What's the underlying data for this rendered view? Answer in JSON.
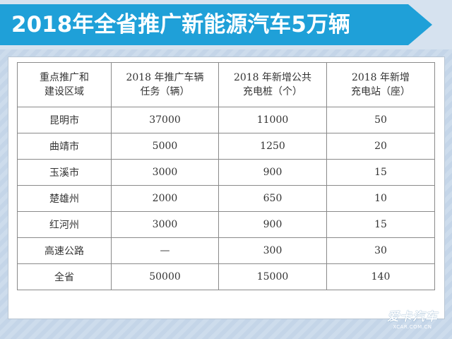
{
  "banner": {
    "title": "2018年全省推广新能源汽车5万辆"
  },
  "table": {
    "headers": [
      [
        "重点推广和",
        "建设区域"
      ],
      [
        "2018 年推广车辆",
        "任务（辆）"
      ],
      [
        "2018 年新增公共",
        "充电桩（个）"
      ],
      [
        "2018 年新增",
        "充电站（座）"
      ]
    ],
    "rows": [
      [
        "昆明市",
        "37000",
        "11000",
        "50"
      ],
      [
        "曲靖市",
        "5000",
        "1250",
        "20"
      ],
      [
        "玉溪市",
        "3000",
        "900",
        "15"
      ],
      [
        "楚雄州",
        "2000",
        "650",
        "10"
      ],
      [
        "红河州",
        "3000",
        "900",
        "15"
      ],
      [
        "高速公路",
        "—",
        "300",
        "30"
      ],
      [
        "全省",
        "50000",
        "15000",
        "140"
      ]
    ]
  },
  "logo": {
    "main": "爱卡汽车",
    "sub": "XCAR.COM.CN"
  },
  "colors": {
    "banner_blue": "#1fa0d8",
    "background": "#c9d9ea"
  }
}
